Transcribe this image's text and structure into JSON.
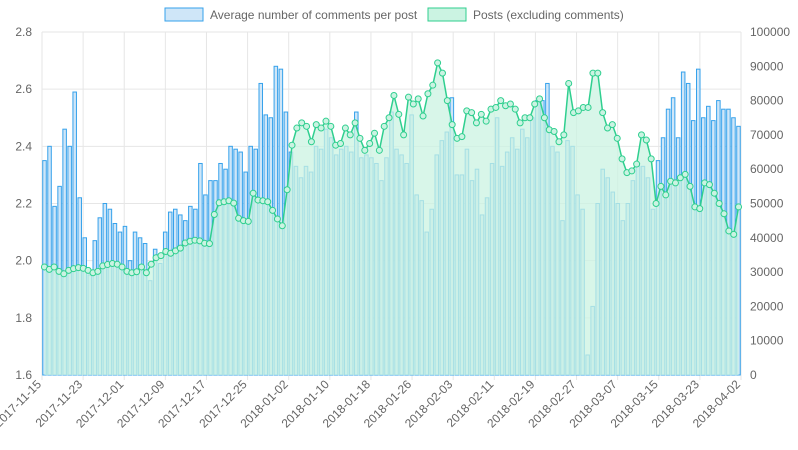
{
  "chart_data": {
    "type": "bar",
    "legend_position": "top",
    "grid": true,
    "x_ticks": [
      "2017-11-15",
      "2017-11-23",
      "2017-12-01",
      "2017-12-09",
      "2017-12-17",
      "2017-12-25",
      "2018-01-02",
      "2018-01-10",
      "2018-01-18",
      "2018-01-26",
      "2018-02-03",
      "2018-02-11",
      "2018-02-19",
      "2018-02-27",
      "2018-03-07",
      "2018-03-15",
      "2018-03-23",
      "2018-04-02"
    ],
    "left_axis": {
      "min": 1.6,
      "max": 2.8,
      "ticks": [
        "1.6",
        "1.8",
        "2.0",
        "2.2",
        "2.4",
        "2.6",
        "2.8"
      ]
    },
    "right_axis": {
      "min": 0,
      "max": 100000,
      "ticks": [
        "0",
        "10000",
        "20000",
        "30000",
        "40000",
        "50000",
        "60000",
        "70000",
        "80000",
        "90000",
        "100000"
      ]
    },
    "colors": {
      "bar_fill": "#cfe6f8",
      "bar_stroke": "#36a2eb",
      "line_fill": "#cbf3e2",
      "line_stroke": "#2fcf8f",
      "grid": "#e6e6e6",
      "text": "#666666"
    },
    "series": [
      {
        "name": "Average number of comments per post",
        "type": "bar",
        "axis": "left",
        "values": [
          2.35,
          2.4,
          2.19,
          2.26,
          2.46,
          2.4,
          2.59,
          2.22,
          2.08,
          1.95,
          2.07,
          2.15,
          2.2,
          2.18,
          2.13,
          2.1,
          2.12,
          2.0,
          2.1,
          2.08,
          2.06,
          1.93,
          2.04,
          1.99,
          2.1,
          2.17,
          2.18,
          2.16,
          2.14,
          2.19,
          2.18,
          2.34,
          2.23,
          2.28,
          2.28,
          2.34,
          2.32,
          2.4,
          2.39,
          2.38,
          2.31,
          2.4,
          2.39,
          2.62,
          2.51,
          2.5,
          2.68,
          2.67,
          2.52,
          2.38,
          2.33,
          2.29,
          2.33,
          2.31,
          2.4,
          2.39,
          2.46,
          2.43,
          2.37,
          2.39,
          2.4,
          2.38,
          2.52,
          2.36,
          2.37,
          2.36,
          2.34,
          2.28,
          2.36,
          2.52,
          2.39,
          2.37,
          2.34,
          2.51,
          2.23,
          2.21,
          2.1,
          2.18,
          2.37,
          2.42,
          2.45,
          2.57,
          2.3,
          2.3,
          2.39,
          2.28,
          2.32,
          2.16,
          2.22,
          2.34,
          2.5,
          2.33,
          2.38,
          2.43,
          2.39,
          2.46,
          2.43,
          2.5,
          2.56,
          2.56,
          2.62,
          2.4,
          2.38,
          2.14,
          2.42,
          2.4,
          2.23,
          2.18,
          1.67,
          1.84,
          2.2,
          2.32,
          2.29,
          2.24,
          2.2,
          2.14,
          2.2,
          2.28,
          2.33,
          2.33,
          2.29,
          2.18,
          2.35,
          2.43,
          2.53,
          2.57,
          2.43,
          2.66,
          2.62,
          2.49,
          2.67,
          2.5,
          2.54,
          2.49,
          2.56,
          2.53,
          2.53,
          2.5,
          2.47
        ]
      },
      {
        "name": "Posts (excluding comments)",
        "type": "area",
        "axis": "right",
        "values": [
          31500,
          30800,
          31500,
          30200,
          29500,
          30500,
          31000,
          31300,
          31100,
          30500,
          29800,
          30200,
          31800,
          32200,
          32500,
          32300,
          31500,
          30200,
          29800,
          30100,
          31500,
          29800,
          32300,
          34200,
          34800,
          36000,
          35500,
          36200,
          37000,
          38500,
          39000,
          39300,
          39100,
          38400,
          38300,
          46800,
          50200,
          50500,
          50800,
          50100,
          45700,
          45000,
          44800,
          53000,
          51000,
          50800,
          50500,
          48000,
          45500,
          43500,
          54000,
          67000,
          72000,
          73500,
          72500,
          68000,
          73000,
          72000,
          74000,
          72500,
          67000,
          67500,
          72000,
          70000,
          73500,
          69000,
          65500,
          67500,
          70500,
          65500,
          72500,
          75000,
          81500,
          76000,
          70000,
          81000,
          79000,
          80500,
          75500,
          82000,
          84500,
          91000,
          88000,
          80000,
          73000,
          69000,
          69500,
          77000,
          76500,
          73500,
          76000,
          74000,
          77500,
          78000,
          80000,
          78500,
          79000,
          77500,
          73500,
          75000,
          75000,
          79000,
          80500,
          75000,
          71500,
          71000,
          68000,
          70000,
          85000,
          76500,
          77000,
          78000,
          78000,
          88000,
          88000,
          76500,
          72000,
          73000,
          69000,
          63000,
          59000,
          59500,
          61500,
          70000,
          68500,
          63000,
          50000,
          55000,
          52500,
          56500,
          56000,
          57500,
          58500,
          55000,
          49000,
          48500,
          56000,
          55500,
          53000,
          50000,
          47000,
          42000,
          41000,
          49000
        ]
      }
    ]
  }
}
